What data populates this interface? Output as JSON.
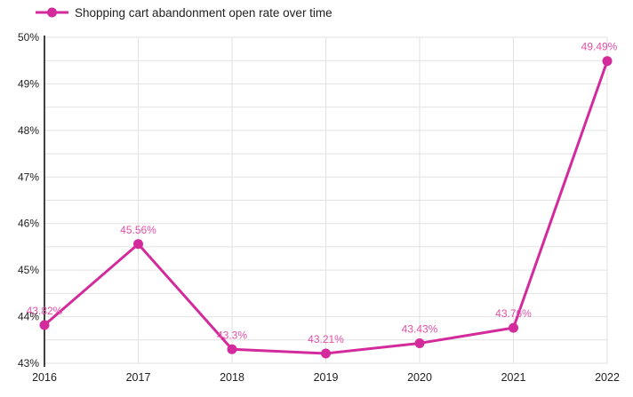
{
  "legend": {
    "label": "Shopping cart abandonment open rate over time"
  },
  "colors": {
    "series": "#d32a9c",
    "value_label": "#e550a8",
    "grid": "#e2e2e2",
    "axis": "#404040",
    "tick_text": "#212121"
  },
  "chart_data": {
    "type": "line",
    "title": "Shopping cart abandonment open rate over time",
    "x": [
      2016,
      2017,
      2018,
      2019,
      2020,
      2021,
      2022
    ],
    "x_tick_labels": [
      "2016",
      "2017",
      "2018",
      "2019",
      "2020",
      "2021",
      "2022"
    ],
    "values": [
      43.82,
      45.56,
      43.3,
      43.21,
      43.43,
      43.76,
      49.49
    ],
    "point_labels": [
      "43.82%",
      "45.56%",
      "43.21%",
      "43.43%",
      "43.76%",
      "49.49%"
    ],
    "point_labels_full": [
      "43.82%",
      "45.56%",
      "43.3%",
      "43.21%",
      "43.43%",
      "43.76%",
      "49.49%"
    ],
    "ylim": [
      43,
      50
    ],
    "y_tick_values": [
      50,
      49,
      48,
      47,
      46,
      45,
      44,
      43
    ],
    "y_tick_labels": [
      "50%",
      "49%",
      "48%",
      "47%",
      "46%",
      "45%",
      "44%",
      "43%"
    ],
    "grid": true,
    "grid_minor_step": 0.5,
    "legend_position": "top-left",
    "xlabel": "",
    "ylabel": ""
  }
}
